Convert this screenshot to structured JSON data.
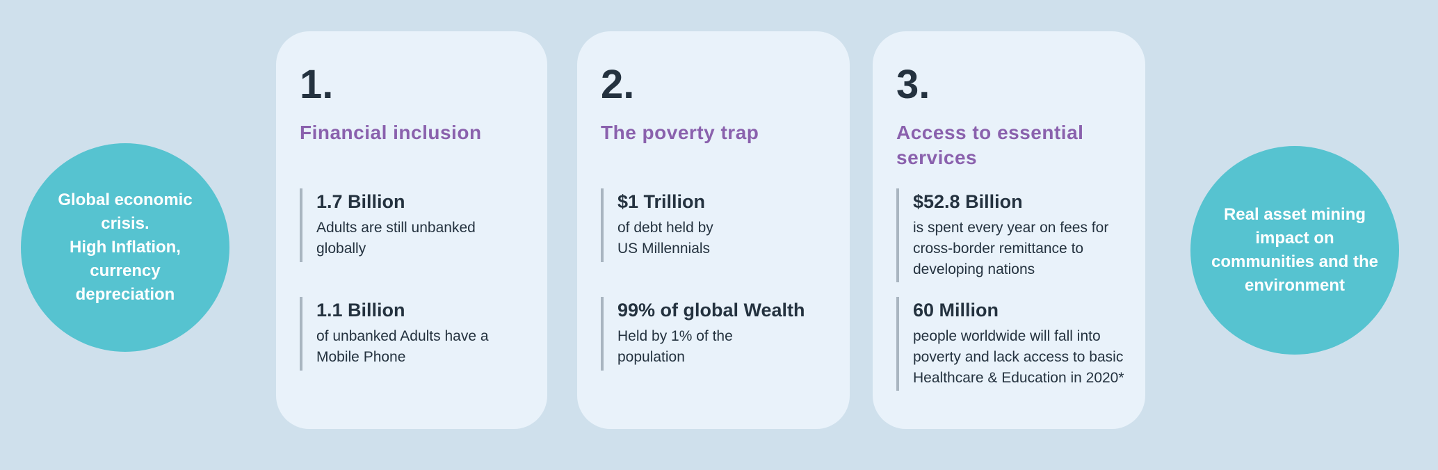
{
  "colors": {
    "background": "#cfe0ec",
    "card_background": "#e9f2fa",
    "circle_teal": "#56c3d0",
    "heading_purple": "#8a61ad",
    "text_navy": "#24323f",
    "stat_bar_gray": "#a9b5c0"
  },
  "left_circle": {
    "text": "Global economic\ncrisis.\nHigh Inflation,\ncurrency\ndepreciation"
  },
  "right_circle": {
    "text": "Real asset  mining\nimpact on\ncommunities and the\nenvironment"
  },
  "cards": [
    {
      "number": "1.",
      "title": "Financial inclusion",
      "stats": [
        {
          "value": "1.7 Billion",
          "description": "Adults are still unbanked\nglobally"
        },
        {
          "value": "1.1 Billion",
          "description": "of unbanked Adults have a\nMobile Phone"
        }
      ]
    },
    {
      "number": "2.",
      "title": "The poverty trap",
      "stats": [
        {
          "value": "$1 Trillion",
          "description": "of debt held by\nUS Millennials"
        },
        {
          "value": "99% of global Wealth",
          "description": "Held by 1% of the\npopulation"
        }
      ]
    },
    {
      "number": "3.",
      "title": "Access to essential\nservices",
      "stats": [
        {
          "value": "$52.8 Billion",
          "description": "is spent every year on fees for\ncross-border remittance to\ndeveloping nations"
        },
        {
          "value": "60 Million",
          "description": "people worldwide will fall into\npoverty and lack access to basic\nHealthcare & Education in 2020*"
        }
      ]
    }
  ]
}
